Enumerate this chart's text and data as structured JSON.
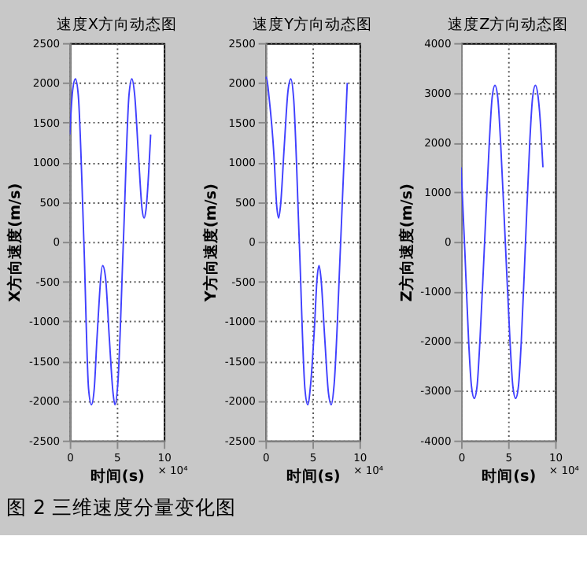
{
  "chart_data": [
    {
      "type": "line",
      "title": "速度X方向动态图",
      "xlabel": "时间(s)",
      "ylabel": "X方向速度(m/s)",
      "xlim": [
        0,
        10
      ],
      "xticks": [
        0,
        5,
        10
      ],
      "ylim": [
        -2500,
        2500
      ],
      "yticks": [
        -2500,
        -2000,
        -1500,
        -1000,
        -500,
        0,
        500,
        1000,
        1500,
        2000,
        2500
      ],
      "grid": true,
      "annotations": [
        "× 10⁴"
      ],
      "series": [
        {
          "color": "#4040ff",
          "x": [
            0,
            0.3,
            0.6,
            0.9,
            1.5,
            2.0,
            2.3,
            2.6,
            2.9,
            3.5,
            3.8,
            4.2,
            4.6,
            4.8,
            5.1,
            5.7,
            6.3,
            6.6,
            6.9,
            7.3,
            7.7,
            7.9,
            8.1,
            8.6
          ],
          "values": [
            1350,
            1900,
            2050,
            1850,
            0,
            -1850,
            -2050,
            -1850,
            -1200,
            -300,
            -450,
            -1200,
            -1900,
            -2050,
            -1800,
            0,
            1850,
            2050,
            1850,
            1100,
            400,
            300,
            400,
            1350
          ]
        }
      ]
    },
    {
      "type": "line",
      "title": "速度Y方向动态图",
      "xlabel": "时间(s)",
      "ylabel": "Y方向速度(m/s)",
      "xlim": [
        0,
        10
      ],
      "xticks": [
        0,
        5,
        10
      ],
      "ylim": [
        -2500,
        2500
      ],
      "yticks": [
        -2500,
        -2000,
        -1500,
        -1000,
        -500,
        0,
        500,
        1000,
        1500,
        2000,
        2500
      ],
      "grid": true,
      "annotations": [
        "× 10⁴"
      ],
      "series": [
        {
          "color": "#4040ff",
          "x": [
            0,
            0.1,
            0.4,
            0.9,
            1.2,
            1.4,
            1.6,
            2.0,
            2.4,
            2.7,
            3.0,
            3.6,
            4.2,
            4.5,
            4.8,
            5.2,
            5.5,
            5.7,
            5.9,
            6.3,
            6.7,
            7.0,
            7.3,
            8.0,
            8.7
          ],
          "values": [
            2050,
            2070,
            1800,
            1100,
            450,
            300,
            450,
            1200,
            1900,
            2050,
            1800,
            0,
            -1850,
            -2050,
            -1800,
            -1100,
            -450,
            -300,
            -450,
            -1200,
            -1900,
            -2050,
            -1800,
            0,
            2000
          ]
        }
      ]
    },
    {
      "type": "line",
      "title": "速度Z方向动态图",
      "xlabel": "时间(s)",
      "ylabel": "Z方向速度(m/s)",
      "xlim": [
        0,
        10
      ],
      "xticks": [
        0,
        5,
        10
      ],
      "ylim": [
        -4000,
        4000
      ],
      "yticks": [
        -4000,
        -3000,
        -2000,
        -1000,
        0,
        1000,
        2000,
        3000,
        4000
      ],
      "grid": true,
      "annotations": [
        "× 10⁴"
      ],
      "series": [
        {
          "color": "#4040ff",
          "x": [
            0,
            0.4,
            0.8,
            1.1,
            1.4,
            1.7,
            2.0,
            2.5,
            3.0,
            3.3,
            3.6,
            3.9,
            4.2,
            4.7,
            5.2,
            5.5,
            5.8,
            6.1,
            6.4,
            6.85,
            7.3,
            7.6,
            7.9,
            8.2,
            8.5,
            8.7
          ],
          "values": [
            1500,
            -200,
            -2000,
            -2900,
            -3150,
            -2900,
            -2000,
            0,
            2000,
            2900,
            3150,
            2900,
            2000,
            0,
            -2000,
            -2900,
            -3150,
            -2900,
            -2000,
            0,
            2000,
            2900,
            3150,
            2900,
            2200,
            1500
          ]
        }
      ]
    },
    {
      "type": "other",
      "title": "图 2 三维速度分量变化图"
    }
  ]
}
